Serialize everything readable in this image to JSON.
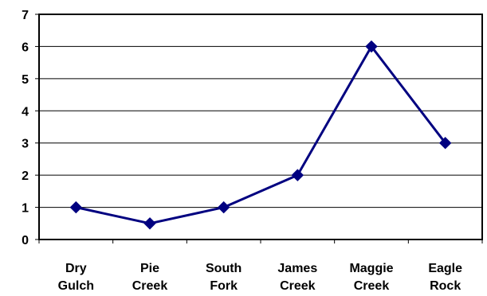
{
  "chart_data": {
    "type": "line",
    "title": "",
    "xlabel": "",
    "ylabel": "",
    "categories": [
      [
        "Dry",
        "Gulch"
      ],
      [
        "Pie",
        "Creek"
      ],
      [
        "South",
        "Fork"
      ],
      [
        "James",
        "Creek"
      ],
      [
        "Maggie",
        "Creek"
      ],
      [
        "Eagle",
        "Rock"
      ]
    ],
    "series": [
      {
        "values": [
          1,
          0.5,
          1,
          2,
          6,
          3
        ],
        "color": "#000080",
        "marker": "diamond"
      }
    ],
    "ylim": [
      0,
      7
    ],
    "yticks": [
      "0",
      "1",
      "2",
      "3",
      "4",
      "5",
      "6",
      "7"
    ],
    "grid": true,
    "legend": "none"
  }
}
